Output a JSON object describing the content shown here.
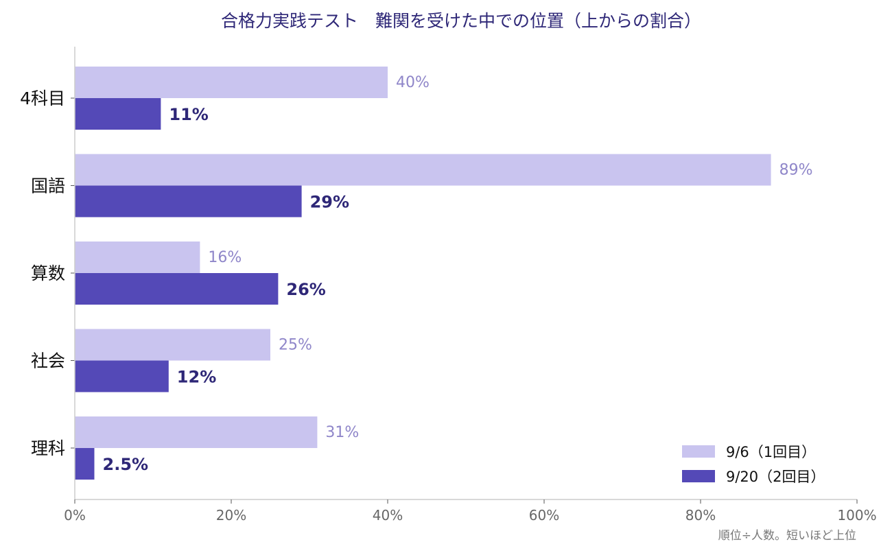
{
  "chart_data": {
    "type": "bar",
    "orientation": "horizontal",
    "title": "合格力実践テスト　難関を受けた中での位置（上からの割合）",
    "categories": [
      "4科目",
      "国語",
      "算数",
      "社会",
      "理科"
    ],
    "series": [
      {
        "name": "9/6（1回目）",
        "values": [
          40,
          89,
          16,
          25,
          31
        ],
        "labels": [
          "40%",
          "89%",
          "16%",
          "25%",
          "31%"
        ],
        "color": "#c9c4ef"
      },
      {
        "name": "9/20（2回目）",
        "values": [
          11,
          29,
          26,
          12,
          2.5
        ],
        "labels": [
          "11%",
          "29%",
          "26%",
          "12%",
          "2.5%"
        ],
        "color": "#5449b7"
      }
    ],
    "xlim": [
      0,
      100
    ],
    "xticks": [
      0,
      20,
      40,
      60,
      80,
      100
    ],
    "xtick_labels": [
      "0%",
      "20%",
      "40%",
      "60%",
      "80%",
      "100%"
    ],
    "grid": false,
    "legend_position": "bottom-right",
    "footnote": "順位÷人数。短いほど上位",
    "value_label_colors": [
      "#8f86c9",
      "#2e2777"
    ],
    "title_color": "#2e2777",
    "axis_color": "#cccccc"
  }
}
